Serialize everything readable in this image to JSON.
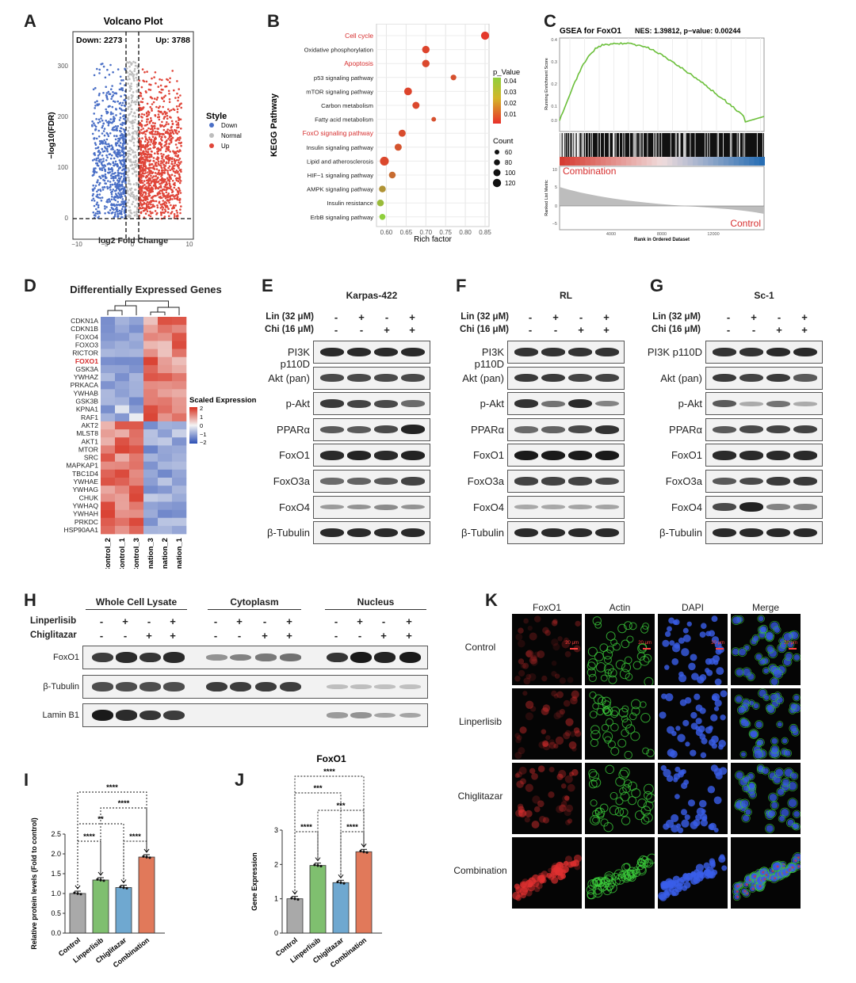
{
  "panels": {
    "A": "A",
    "B": "B",
    "C": "C",
    "D": "D",
    "E": "E",
    "F": "F",
    "G": "G",
    "H": "H",
    "I": "I",
    "J": "J",
    "K": "K"
  },
  "volcano": {
    "title": "Volcano Plot",
    "down": "Down: 2273",
    "up": "Up: 3788",
    "xlabel": "log2 Fold Change",
    "ylabel": "−log10(FDR)",
    "xticks": [
      "−10",
      "−5",
      "0",
      "5",
      "10"
    ],
    "yticks": [
      "0",
      "100",
      "200",
      "300"
    ],
    "legend_title": "Style",
    "legend": [
      "Down",
      "Normal",
      "Up"
    ],
    "colors": {
      "down": "#4a6fc6",
      "normal": "#bdbdbd",
      "up": "#e0463a"
    }
  },
  "kegg": {
    "ylabel": "KEGG Pathway",
    "xlabel": "Rich factor",
    "xticks": [
      "0.60",
      "0.65",
      "0.70",
      "0.75",
      "0.80",
      "0.85"
    ],
    "pathways": [
      {
        "name": "Cell cycle",
        "red": true,
        "rich": 0.85,
        "p": 0.002,
        "count": 100
      },
      {
        "name": "Oxidative phosphorylation",
        "red": false,
        "rich": 0.7,
        "p": 0.005,
        "count": 90
      },
      {
        "name": "Apoptosis",
        "red": true,
        "rich": 0.7,
        "p": 0.006,
        "count": 90
      },
      {
        "name": "p53 signaling pathway",
        "red": false,
        "rich": 0.77,
        "p": 0.008,
        "count": 65
      },
      {
        "name": "mTOR signaling pathway",
        "red": false,
        "rich": 0.655,
        "p": 0.005,
        "count": 95
      },
      {
        "name": "Carbon metabolism",
        "red": false,
        "rich": 0.675,
        "p": 0.006,
        "count": 85
      },
      {
        "name": "Fatty acid metabolism",
        "red": false,
        "rich": 0.72,
        "p": 0.008,
        "count": 50
      },
      {
        "name": "FoxO signaling pathway",
        "red": true,
        "rich": 0.64,
        "p": 0.007,
        "count": 85
      },
      {
        "name": "Insulin signaling pathway",
        "red": false,
        "rich": 0.63,
        "p": 0.009,
        "count": 85
      },
      {
        "name": "Lipid and atherosclerosis",
        "red": false,
        "rich": 0.595,
        "p": 0.006,
        "count": 110
      },
      {
        "name": "HIF−1 signaling pathway",
        "red": false,
        "rich": 0.615,
        "p": 0.015,
        "count": 80
      },
      {
        "name": "AMPK signaling pathway",
        "red": false,
        "rich": 0.59,
        "p": 0.025,
        "count": 80
      },
      {
        "name": "Insulin resistance",
        "red": false,
        "rich": 0.585,
        "p": 0.035,
        "count": 80
      },
      {
        "name": "ErbB signaling pathway",
        "red": false,
        "rich": 0.59,
        "p": 0.04,
        "count": 70
      }
    ],
    "p_title": "p_Value",
    "p_ticks": [
      "0.04",
      "0.03",
      "0.02",
      "0.01"
    ],
    "count_title": "Count",
    "count_ticks": [
      "60",
      "80",
      "100",
      "120"
    ]
  },
  "gsea": {
    "title": "GSEA for FoxO1",
    "stats": "NES: 1.39812, p−value: 0.00244",
    "ylabel_top": "Running Enrichment Score",
    "ylabel_bottom": "Ranked List Metric",
    "xlabel": "Rank in Ordered Dataset",
    "xticks": [
      "4000",
      "8000",
      "12000"
    ],
    "yticks_top": [
      "0.4",
      "0.3",
      "0.2",
      "0.1",
      "0.0"
    ],
    "yticks_bottom": [
      "10",
      "5",
      "0",
      "−5"
    ],
    "label_pos": "Combination",
    "label_neg": "Control"
  },
  "heatmap": {
    "title": "Differentially Expressed Genes",
    "genes": [
      "CDKN1A",
      "CDKN1B",
      "FOXO4",
      "FOXO3",
      "RICTOR",
      "FOXO1",
      "GSK3A",
      "YWHAZ",
      "PRKACA",
      "YWHAB",
      "GSK3B",
      "KPNA1",
      "RAF1",
      "AKT2",
      "MLST8",
      "AKT1",
      "MTOR",
      "SRC",
      "MAPKAP1",
      "TBC1D4",
      "YWHAE",
      "YWHAG",
      "CHUK",
      "YWHAQ",
      "YWHAH",
      "PRKDC",
      "HSP90AA1"
    ],
    "highlight": "FOXO1",
    "samples": [
      "Control_2",
      "Control_1",
      "Control_3",
      "Combination_3",
      "Combination_2",
      "Combination_1"
    ],
    "legend_title": "Scaled Expression",
    "legend_ticks": [
      "2",
      "1",
      "0",
      "−1",
      "−2"
    ]
  },
  "westerns": {
    "treatment_labels": {
      "lin": "Lin (32 μM)",
      "chi": "Chi (16 μM)"
    },
    "lin_signs": [
      "-",
      "+",
      "-",
      "+"
    ],
    "chi_signs": [
      "-",
      "-",
      "+",
      "+"
    ],
    "cell_lines": [
      "Karpas-422",
      "RL",
      "Sc-1"
    ],
    "proteins": [
      "PI3K p110D",
      "Akt (pan)",
      "p-Akt",
      "PPARα",
      "FoxO1",
      "FoxO3a",
      "FoxO4",
      "β-Tubulin"
    ]
  },
  "fractionation": {
    "sections": [
      "Whole Cell Lysate",
      "Cytoplasm",
      "Nucleus"
    ],
    "row_labels": [
      "Linperlisib",
      "Chiglitazar"
    ],
    "lin_signs": [
      "-",
      "+",
      "-",
      "+"
    ],
    "chi_signs": [
      "-",
      "-",
      "+",
      "+"
    ],
    "proteins": [
      "FoxO1",
      "β-Tubulin",
      "Lamin B1"
    ]
  },
  "bar_I": {
    "ylabel": "Relative protein levels (Fold  to control)",
    "yticks": [
      "0.0",
      "0.5",
      "1.0",
      "1.5",
      "2.0",
      "2.5"
    ],
    "categories": [
      "Control",
      "Linperlisib",
      "Chiglitazar",
      "Combination"
    ],
    "values": [
      1.0,
      1.34,
      1.15,
      1.92
    ],
    "colors": [
      "#a9a9a9",
      "#7fbf6f",
      "#6fa8d0",
      "#e1795a"
    ],
    "sig": [
      "****",
      "****",
      "**",
      "****",
      "****"
    ]
  },
  "bar_J": {
    "title": "FoxO1",
    "ylabel": "Gene Expression",
    "yticks": [
      "0",
      "1",
      "2",
      "3"
    ],
    "categories": [
      "Control",
      "Linperlisib",
      "Chiglitazar",
      "Combination"
    ],
    "values": [
      1.0,
      1.97,
      1.47,
      2.37
    ],
    "colors": [
      "#a9a9a9",
      "#7fbf6f",
      "#6fa8d0",
      "#e1795a"
    ],
    "sig": [
      "****",
      "***",
      "***",
      "****",
      "****"
    ]
  },
  "if_panel": {
    "columns": [
      "FoxO1",
      "Actin",
      "DAPI",
      "Merge"
    ],
    "rows": [
      "Control",
      "Linperlisib",
      "Chiglitazar",
      "Combination"
    ],
    "scale": "20 μm"
  }
}
